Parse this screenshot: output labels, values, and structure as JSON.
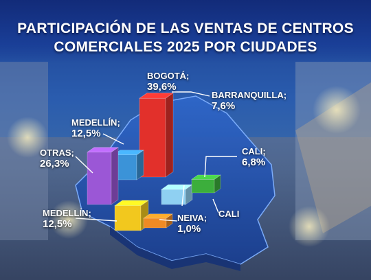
{
  "chart_data": {
    "type": "bar",
    "title": "PARTICIPACIÓN DE LAS VENTAS DE CENTROS COMERCIALES 2025 POR CIUDADES",
    "title_lines": [
      "PARTICIPACIÓN DE LAS VENTAS DE CENTROS",
      "COMERCIALES 2025 POR CIUDADES"
    ],
    "unit": "%",
    "bars": [
      {
        "id": "otras",
        "name": "OTRAS;",
        "label": "26,3%",
        "value": 26.3,
        "color": "#9b57d6"
      },
      {
        "id": "medellin_top",
        "name": "MEDELLÍN;",
        "label": "12,5%",
        "value": 12.5,
        "color": "#3b93d8"
      },
      {
        "id": "bogota",
        "name": "BOGOTÁ;",
        "label": "39,6%",
        "value": 39.6,
        "color": "#e2302b"
      },
      {
        "id": "barranquilla",
        "name": "BARRANQUILLA;",
        "label": "7,6%",
        "value": 7.6,
        "color": "#8fd0f2"
      },
      {
        "id": "cali",
        "name": "CALI;",
        "label": "6,8%",
        "value": 6.8,
        "color": "#3cae3c"
      },
      {
        "id": "medellin_bottom",
        "name": "MEDELLÍN;",
        "label": "12,5%",
        "value": 12.5,
        "color": "#f2c81e"
      },
      {
        "id": "neiva",
        "name": "NEIVA;",
        "label": "1,0%",
        "value": 1.0,
        "color": "#ef8a24"
      }
    ],
    "extra_labels": [
      "CALI"
    ],
    "legend": "none",
    "grid": false
  }
}
